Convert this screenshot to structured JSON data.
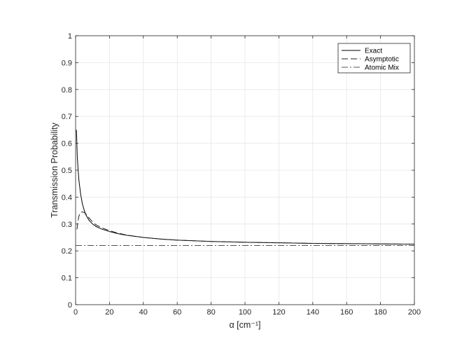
{
  "chart_data": {
    "type": "line",
    "xlabel": "α [cm⁻¹]",
    "ylabel": "Transmission Probability",
    "xlim": [
      0,
      200
    ],
    "ylim": [
      0,
      1
    ],
    "xticks": [
      0,
      20,
      40,
      60,
      80,
      100,
      120,
      140,
      160,
      180,
      200
    ],
    "yticks": [
      0,
      0.1,
      0.2,
      0.3,
      0.4,
      0.5,
      0.6,
      0.7,
      0.8,
      0.9,
      1
    ],
    "grid": true,
    "legend_position": "top-right",
    "series": [
      {
        "name": "Exact",
        "style": "solid",
        "color": "#000000",
        "x": [
          0.5,
          1,
          1.5,
          2,
          3,
          4,
          5,
          6,
          8,
          10,
          12,
          15,
          20,
          25,
          30,
          40,
          50,
          60,
          80,
          100,
          120,
          140,
          160,
          180,
          200
        ],
        "y": [
          0.65,
          0.55,
          0.5,
          0.46,
          0.41,
          0.375,
          0.353,
          0.335,
          0.313,
          0.3,
          0.291,
          0.282,
          0.272,
          0.264,
          0.258,
          0.25,
          0.244,
          0.24,
          0.235,
          0.232,
          0.23,
          0.228,
          0.227,
          0.226,
          0.225
        ]
      },
      {
        "name": "Asymptotic",
        "style": "dashed",
        "color": "#000000",
        "x": [
          0.8,
          1.2,
          1.6,
          2,
          2.5,
          3,
          4,
          5,
          6,
          7,
          8,
          10,
          12,
          15,
          20,
          25,
          30,
          40,
          50,
          60,
          80,
          100,
          120,
          140,
          160,
          180,
          200
        ],
        "y": [
          0.28,
          0.3,
          0.318,
          0.33,
          0.338,
          0.343,
          0.345,
          0.343,
          0.338,
          0.33,
          0.322,
          0.308,
          0.297,
          0.287,
          0.275,
          0.266,
          0.259,
          0.25,
          0.244,
          0.24,
          0.235,
          0.232,
          0.23,
          0.228,
          0.227,
          0.226,
          0.225
        ]
      },
      {
        "name": "Atomic Mix",
        "style": "dashdot",
        "color": "#000000",
        "x": [
          0,
          200
        ],
        "y": [
          0.22,
          0.22
        ]
      }
    ]
  }
}
